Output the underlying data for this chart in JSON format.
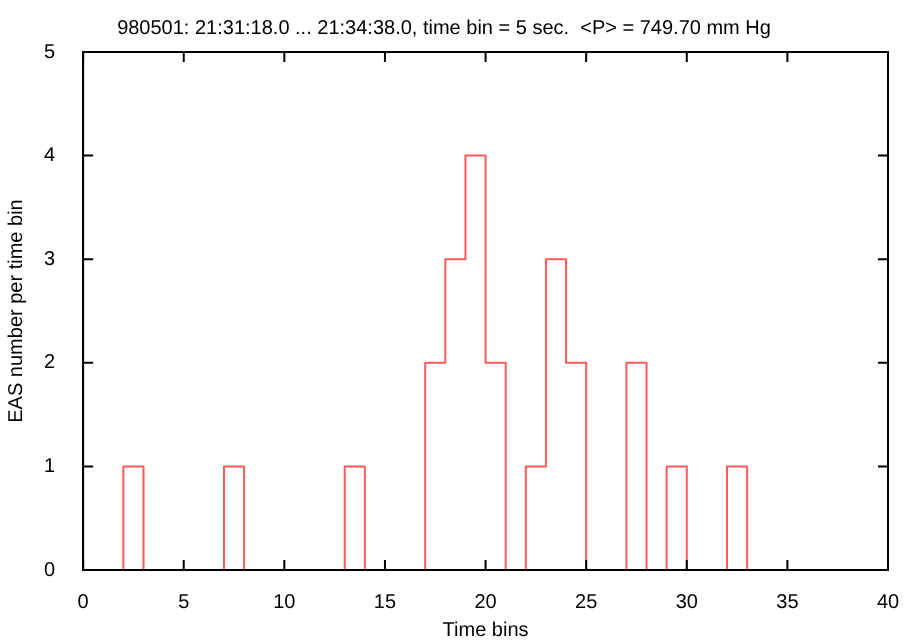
{
  "chart_data": {
    "type": "histogram",
    "title": "980501: 21:31:18.0 ... 21:34:38.0, time bin = 5 sec.  <P> = 749.70 mm Hg",
    "xlabel": "Time bins",
    "ylabel": "EAS number per time bin",
    "bins": [
      0,
      1,
      2,
      3,
      4,
      5,
      6,
      7,
      8,
      9,
      10,
      11,
      12,
      13,
      14,
      15,
      16,
      17,
      18,
      19,
      20,
      21,
      22,
      23,
      24,
      25,
      26,
      27,
      28,
      29,
      30,
      31,
      32,
      33,
      34,
      35,
      36,
      37,
      38,
      39,
      40
    ],
    "values": [
      0,
      0,
      1,
      0,
      0,
      0,
      0,
      1,
      0,
      0,
      0,
      0,
      0,
      1,
      0,
      0,
      0,
      2,
      3,
      4,
      2,
      0,
      1,
      3,
      2,
      0,
      0,
      2,
      0,
      1,
      0,
      0,
      1,
      0,
      0,
      0,
      0,
      0,
      0,
      0
    ],
    "color": "#ff5a5a",
    "xlim": [
      0,
      40
    ],
    "xticks": [
      0,
      5,
      10,
      15,
      20,
      25,
      30,
      35,
      40
    ],
    "ylim": [
      0,
      5
    ],
    "yticks": [
      0,
      1,
      2,
      3,
      4,
      5
    ]
  }
}
